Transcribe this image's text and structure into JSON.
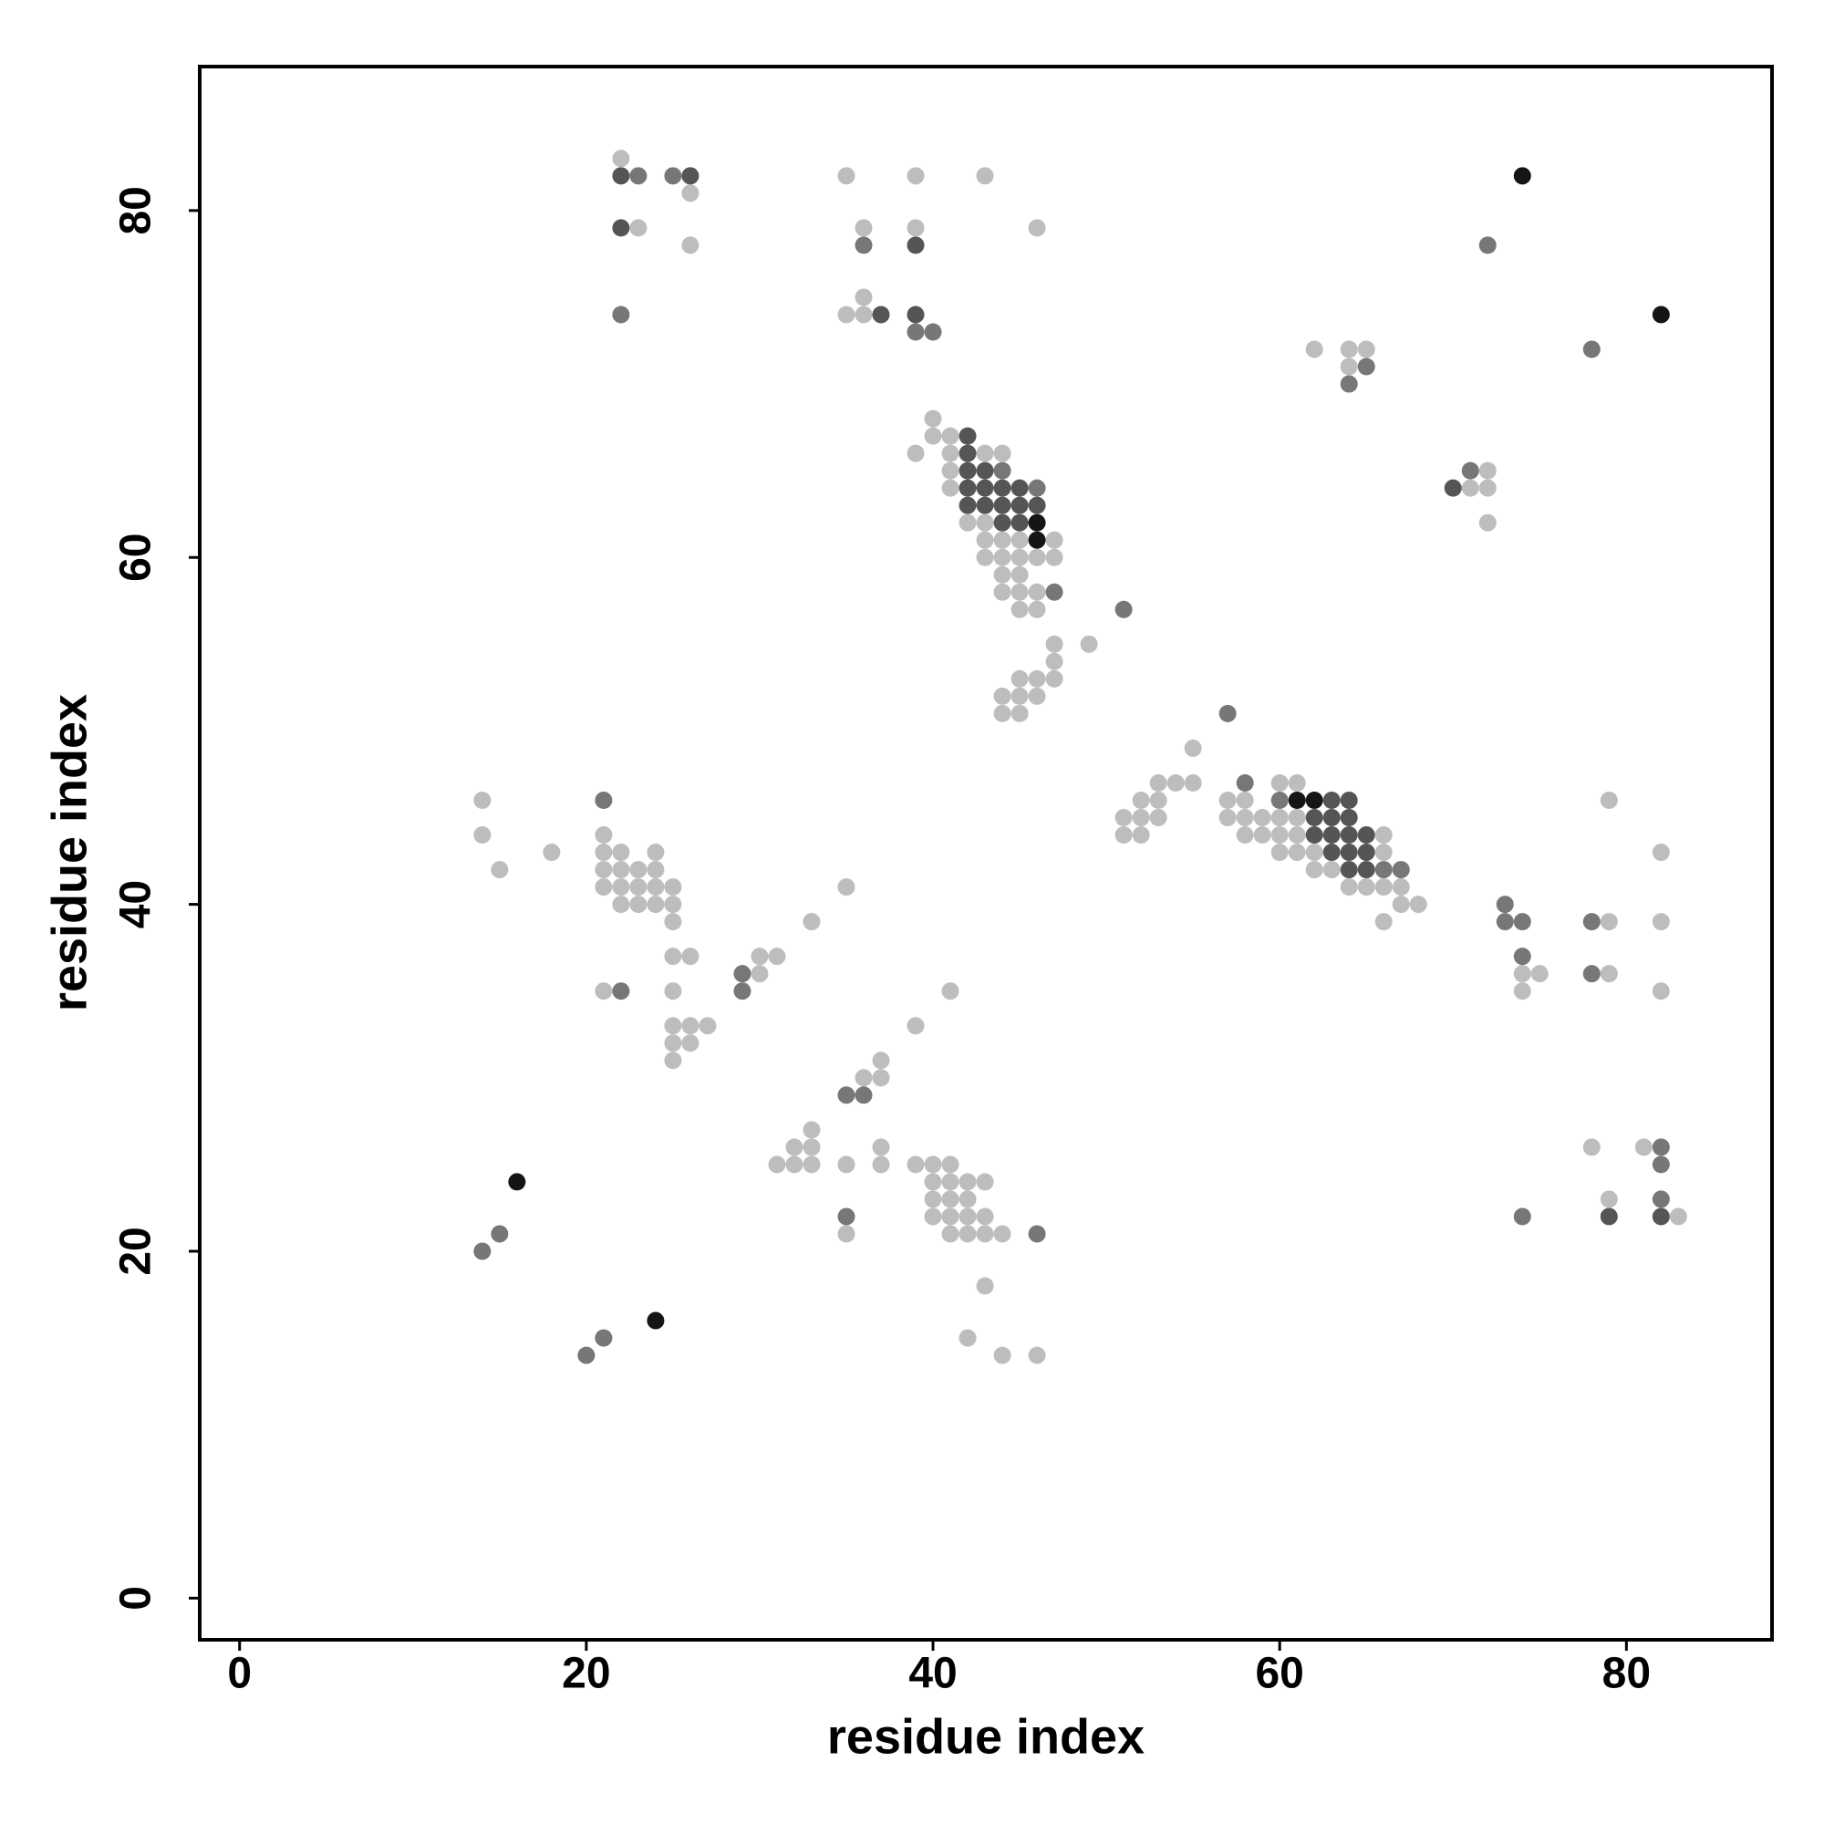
{
  "chart_data": {
    "type": "scatter",
    "x_label": "residue index",
    "y_label": "residue index",
    "xlim": [
      -2.3,
      88.4
    ],
    "ylim": [
      -2.4,
      88.3
    ],
    "xticks": [
      0,
      20,
      40,
      60,
      80
    ],
    "yticks": [
      0,
      20,
      40,
      60,
      80
    ],
    "series": [
      {
        "color": "#bdbdbd",
        "x": [
          22,
          35,
          39,
          43,
          26,
          23,
          36,
          39,
          46,
          26,
          36,
          35,
          36,
          62,
          64,
          65,
          64,
          40,
          40,
          41,
          39,
          41,
          43,
          44,
          41,
          72,
          41,
          71,
          72,
          42,
          43,
          72,
          43,
          44,
          45,
          47,
          43,
          44,
          45,
          46,
          47,
          44,
          45,
          44,
          45,
          46,
          45,
          46,
          47,
          49,
          47,
          45,
          46,
          47,
          44,
          45,
          46,
          44,
          45,
          55,
          53,
          54,
          55,
          60,
          61,
          14,
          52,
          53,
          57,
          58,
          79,
          51,
          52,
          53,
          57,
          58,
          59,
          60,
          61,
          14,
          21,
          51,
          52,
          58,
          59,
          60,
          61,
          66,
          18,
          21,
          22,
          24,
          60,
          61,
          62,
          66,
          82,
          15,
          21,
          22,
          23,
          24,
          62,
          63,
          21,
          22,
          23,
          24,
          25,
          35,
          64,
          65,
          66,
          67,
          22,
          23,
          24,
          25,
          67,
          68,
          25,
          33,
          66,
          79,
          82,
          25,
          26,
          30,
          31,
          30,
          74,
          75,
          79,
          21,
          25,
          41,
          74,
          82,
          25,
          26,
          27,
          39,
          25,
          26,
          25,
          37,
          36,
          37,
          33,
          32,
          33,
          37,
          78,
          81,
          31,
          32,
          33,
          35,
          37,
          39,
          40,
          41,
          40,
          41,
          42,
          43,
          40,
          41,
          42,
          79,
          40,
          41,
          42,
          43,
          83,
          35,
          41,
          42,
          43,
          44,
          43,
          42,
          44,
          46
        ],
        "values": [
          83,
          82,
          82,
          82,
          81,
          79,
          79,
          79,
          79,
          78,
          75,
          74,
          74,
          72,
          72,
          72,
          71,
          68,
          67,
          67,
          66,
          66,
          66,
          66,
          65,
          65,
          64,
          64,
          64,
          62,
          62,
          62,
          61,
          61,
          61,
          61,
          60,
          60,
          60,
          60,
          60,
          59,
          59,
          58,
          58,
          58,
          57,
          57,
          55,
          55,
          54,
          53,
          53,
          53,
          52,
          52,
          52,
          51,
          51,
          49,
          47,
          47,
          47,
          47,
          47,
          46,
          46,
          46,
          46,
          46,
          46,
          45,
          45,
          45,
          45,
          45,
          45,
          45,
          45,
          44,
          44,
          44,
          44,
          44,
          44,
          44,
          44,
          44,
          43,
          43,
          43,
          43,
          43,
          43,
          43,
          43,
          43,
          42,
          42,
          42,
          42,
          42,
          42,
          42,
          41,
          41,
          41,
          41,
          41,
          41,
          41,
          41,
          41,
          41,
          40,
          40,
          40,
          40,
          40,
          40,
          39,
          39,
          39,
          39,
          39,
          37,
          37,
          37,
          37,
          36,
          36,
          36,
          36,
          35,
          35,
          35,
          35,
          35,
          33,
          33,
          33,
          33,
          32,
          32,
          31,
          31,
          30,
          30,
          27,
          26,
          26,
          26,
          26,
          26,
          25,
          25,
          25,
          25,
          25,
          25,
          25,
          25,
          24,
          24,
          24,
          24,
          23,
          23,
          23,
          23,
          22,
          22,
          22,
          22,
          22,
          21,
          21,
          21,
          21,
          21,
          18,
          15,
          14,
          14
        ]
      },
      {
        "color": "#777777",
        "x": [
          23,
          25,
          36,
          72,
          22,
          39,
          40,
          78,
          65,
          64,
          44,
          71,
          46,
          47,
          51,
          57,
          58,
          21,
          60,
          66,
          67,
          73,
          73,
          74,
          78,
          74,
          29,
          78,
          22,
          29,
          35,
          36,
          82,
          82,
          82,
          35,
          74,
          15,
          46,
          14,
          21,
          20
        ],
        "values": [
          82,
          82,
          78,
          78,
          74,
          73,
          73,
          72,
          71,
          70,
          65,
          65,
          64,
          58,
          57,
          51,
          47,
          46,
          46,
          42,
          42,
          40,
          39,
          39,
          39,
          37,
          36,
          36,
          35,
          35,
          29,
          29,
          26,
          25,
          23,
          22,
          22,
          21,
          21,
          20,
          15,
          14
        ]
      },
      {
        "color": "#555555",
        "x": [
          22,
          26,
          22,
          39,
          37,
          39,
          42,
          42,
          42,
          43,
          42,
          43,
          44,
          45,
          70,
          42,
          43,
          44,
          45,
          46,
          44,
          45,
          63,
          64,
          62,
          63,
          64,
          62,
          63,
          64,
          65,
          63,
          64,
          65,
          64,
          65,
          79,
          82
        ],
        "values": [
          82,
          82,
          79,
          78,
          74,
          74,
          67,
          66,
          65,
          65,
          64,
          64,
          64,
          64,
          64,
          63,
          63,
          63,
          63,
          63,
          62,
          62,
          46,
          46,
          45,
          45,
          45,
          44,
          44,
          44,
          44,
          43,
          43,
          43,
          42,
          42,
          22,
          22
        ]
      },
      {
        "color": "#151515",
        "x": [
          74,
          82,
          46,
          46,
          61,
          62,
          16,
          24
        ],
        "values": [
          82,
          74,
          62,
          61,
          46,
          46,
          24,
          16
        ]
      }
    ]
  }
}
